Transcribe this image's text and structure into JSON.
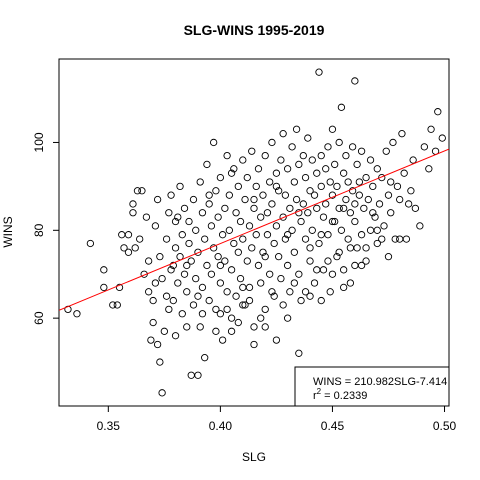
{
  "chart_data": {
    "type": "scatter",
    "title": "SLG-WINS 1995-2019",
    "xlabel": "SLG",
    "ylabel": "WINS",
    "xlim": [
      0.328,
      0.502
    ],
    "ylim": [
      40,
      119
    ],
    "xticks": [
      0.35,
      0.4,
      0.45,
      0.5
    ],
    "xtick_labels": [
      "0.35",
      "0.40",
      "0.45",
      "0.50"
    ],
    "yticks": [
      60,
      80,
      100
    ],
    "ytick_labels": [
      "60",
      "80",
      "100"
    ],
    "grid": false,
    "regression": {
      "slope": 210.982,
      "intercept": -7.414,
      "color": "#ff0000"
    },
    "legend": {
      "placement": "bottom-right",
      "equation": "WINS = 210.982SLG-7.414",
      "r2_prefix": "r",
      "r2_exponent": "2",
      "r2_value": " = 0.2339"
    },
    "series": [
      {
        "point_color": "#000000",
        "points": [
          [
            0.332,
            62
          ],
          [
            0.336,
            61
          ],
          [
            0.342,
            77
          ],
          [
            0.348,
            67
          ],
          [
            0.348,
            71
          ],
          [
            0.352,
            63
          ],
          [
            0.354,
            63
          ],
          [
            0.355,
            67
          ],
          [
            0.356,
            79
          ],
          [
            0.357,
            76
          ],
          [
            0.359,
            79
          ],
          [
            0.359,
            75
          ],
          [
            0.361,
            86
          ],
          [
            0.361,
            84
          ],
          [
            0.362,
            76
          ],
          [
            0.363,
            89
          ],
          [
            0.364,
            78
          ],
          [
            0.365,
            89
          ],
          [
            0.366,
            70
          ],
          [
            0.367,
            83
          ],
          [
            0.368,
            73
          ],
          [
            0.368,
            66
          ],
          [
            0.369,
            55
          ],
          [
            0.37,
            59
          ],
          [
            0.37,
            64
          ],
          [
            0.371,
            68
          ],
          [
            0.371,
            81
          ],
          [
            0.372,
            87
          ],
          [
            0.372,
            54
          ],
          [
            0.373,
            50
          ],
          [
            0.373,
            74
          ],
          [
            0.374,
            69
          ],
          [
            0.374,
            43
          ],
          [
            0.375,
            57
          ],
          [
            0.376,
            65
          ],
          [
            0.376,
            78
          ],
          [
            0.377,
            84
          ],
          [
            0.377,
            62
          ],
          [
            0.378,
            71
          ],
          [
            0.378,
            88
          ],
          [
            0.379,
            72
          ],
          [
            0.379,
            64
          ],
          [
            0.38,
            56
          ],
          [
            0.38,
            76
          ],
          [
            0.381,
            83
          ],
          [
            0.381,
            68
          ],
          [
            0.382,
            74
          ],
          [
            0.382,
            90
          ],
          [
            0.383,
            61
          ],
          [
            0.383,
            79
          ],
          [
            0.384,
            70
          ],
          [
            0.384,
            85
          ],
          [
            0.385,
            66
          ],
          [
            0.385,
            58
          ],
          [
            0.386,
            77
          ],
          [
            0.386,
            82
          ],
          [
            0.387,
            73
          ],
          [
            0.387,
            47
          ],
          [
            0.388,
            87
          ],
          [
            0.388,
            63
          ],
          [
            0.389,
            80
          ],
          [
            0.389,
            69
          ],
          [
            0.39,
            47
          ],
          [
            0.39,
            75
          ],
          [
            0.391,
            91
          ],
          [
            0.391,
            58
          ],
          [
            0.392,
            84
          ],
          [
            0.392,
            67
          ],
          [
            0.393,
            78
          ],
          [
            0.393,
            51
          ],
          [
            0.394,
            72
          ],
          [
            0.394,
            95
          ],
          [
            0.395,
            64
          ],
          [
            0.395,
            86
          ],
          [
            0.396,
            81
          ],
          [
            0.396,
            70
          ],
          [
            0.397,
            100
          ],
          [
            0.397,
            76
          ],
          [
            0.398,
            62
          ],
          [
            0.398,
            89
          ],
          [
            0.399,
            74
          ],
          [
            0.399,
            83
          ],
          [
            0.4,
            68
          ],
          [
            0.4,
            92
          ],
          [
            0.401,
            79
          ],
          [
            0.401,
            55
          ],
          [
            0.402,
            85
          ],
          [
            0.402,
            73
          ],
          [
            0.403,
            97
          ],
          [
            0.403,
            66
          ],
          [
            0.404,
            80
          ],
          [
            0.404,
            88
          ],
          [
            0.405,
            71
          ],
          [
            0.405,
            60
          ],
          [
            0.406,
            94
          ],
          [
            0.406,
            77
          ],
          [
            0.407,
            84
          ],
          [
            0.407,
            65
          ],
          [
            0.408,
            90
          ],
          [
            0.408,
            75
          ],
          [
            0.409,
            82
          ],
          [
            0.409,
            69
          ],
          [
            0.41,
            96
          ],
          [
            0.41,
            78
          ],
          [
            0.411,
            63
          ],
          [
            0.411,
            87
          ],
          [
            0.412,
            73
          ],
          [
            0.412,
            92
          ],
          [
            0.413,
            81
          ],
          [
            0.413,
            67
          ],
          [
            0.414,
            98
          ],
          [
            0.414,
            76
          ],
          [
            0.415,
            85
          ],
          [
            0.415,
            58
          ],
          [
            0.416,
            79
          ],
          [
            0.416,
            90
          ],
          [
            0.417,
            72
          ],
          [
            0.417,
            94
          ],
          [
            0.418,
            83
          ],
          [
            0.418,
            68
          ],
          [
            0.419,
            88
          ],
          [
            0.419,
            75
          ],
          [
            0.42,
            97
          ],
          [
            0.42,
            62
          ],
          [
            0.421,
            84
          ],
          [
            0.421,
            79
          ],
          [
            0.422,
            91
          ],
          [
            0.422,
            70
          ],
          [
            0.423,
            86
          ],
          [
            0.423,
            100
          ],
          [
            0.424,
            77
          ],
          [
            0.424,
            65
          ],
          [
            0.425,
            93
          ],
          [
            0.425,
            81
          ],
          [
            0.426,
            74
          ],
          [
            0.426,
            89
          ],
          [
            0.427,
            96
          ],
          [
            0.427,
            69
          ],
          [
            0.428,
            83
          ],
          [
            0.428,
            102
          ],
          [
            0.429,
            78
          ],
          [
            0.429,
            88
          ],
          [
            0.43,
            72
          ],
          [
            0.43,
            94
          ],
          [
            0.431,
            85
          ],
          [
            0.431,
            66
          ],
          [
            0.432,
            99
          ],
          [
            0.432,
            80
          ],
          [
            0.433,
            91
          ],
          [
            0.433,
            75
          ],
          [
            0.434,
            87
          ],
          [
            0.434,
            103
          ],
          [
            0.435,
            70
          ],
          [
            0.435,
            95
          ],
          [
            0.436,
            82
          ],
          [
            0.436,
            64
          ],
          [
            0.437,
            97
          ],
          [
            0.437,
            86
          ],
          [
            0.438,
            78
          ],
          [
            0.438,
            92
          ],
          [
            0.439,
            101
          ],
          [
            0.439,
            84
          ],
          [
            0.44,
            73
          ],
          [
            0.44,
            89
          ],
          [
            0.441,
            96
          ],
          [
            0.441,
            80
          ],
          [
            0.442,
            88
          ],
          [
            0.442,
            68
          ],
          [
            0.443,
            93
          ],
          [
            0.443,
            85
          ],
          [
            0.444,
            116
          ],
          [
            0.444,
            77
          ],
          [
            0.445,
            97
          ],
          [
            0.445,
            90
          ],
          [
            0.446,
            83
          ],
          [
            0.446,
            71
          ],
          [
            0.447,
            94
          ],
          [
            0.447,
            86
          ],
          [
            0.448,
            99
          ],
          [
            0.448,
            79
          ],
          [
            0.449,
            91
          ],
          [
            0.449,
            66
          ],
          [
            0.45,
            88
          ],
          [
            0.45,
            103
          ],
          [
            0.451,
            82
          ],
          [
            0.451,
            95
          ],
          [
            0.452,
            74
          ],
          [
            0.452,
            90
          ],
          [
            0.453,
            100
          ],
          [
            0.453,
            85
          ],
          [
            0.454,
            108
          ],
          [
            0.454,
            80
          ],
          [
            0.455,
            93
          ],
          [
            0.455,
            71
          ],
          [
            0.456,
            87
          ],
          [
            0.456,
            97
          ],
          [
            0.457,
            78
          ],
          [
            0.457,
            91
          ],
          [
            0.458,
            84
          ],
          [
            0.458,
            68
          ],
          [
            0.459,
            99
          ],
          [
            0.459,
            89
          ],
          [
            0.46,
            114
          ],
          [
            0.46,
            82
          ],
          [
            0.461,
            95
          ],
          [
            0.461,
            76
          ],
          [
            0.462,
            88
          ],
          [
            0.462,
            91
          ],
          [
            0.463,
            79
          ],
          [
            0.463,
            98
          ],
          [
            0.464,
            85
          ],
          [
            0.465,
            73
          ],
          [
            0.465,
            92
          ],
          [
            0.466,
            87
          ],
          [
            0.467,
            96
          ],
          [
            0.467,
            80
          ],
          [
            0.468,
            90
          ],
          [
            0.469,
            83
          ],
          [
            0.47,
            94
          ],
          [
            0.47,
            77
          ],
          [
            0.471,
            86
          ],
          [
            0.472,
            92
          ],
          [
            0.473,
            81
          ],
          [
            0.474,
            98
          ],
          [
            0.475,
            88
          ],
          [
            0.476,
            84
          ],
          [
            0.477,
            100
          ],
          [
            0.478,
            78
          ],
          [
            0.479,
            90
          ],
          [
            0.48,
            87
          ],
          [
            0.481,
            102
          ],
          [
            0.482,
            93
          ],
          [
            0.483,
            78
          ],
          [
            0.484,
            86
          ],
          [
            0.485,
            89
          ],
          [
            0.486,
            96
          ],
          [
            0.487,
            85
          ],
          [
            0.489,
            81
          ],
          [
            0.491,
            99
          ],
          [
            0.493,
            94
          ],
          [
            0.494,
            103
          ],
          [
            0.496,
            98
          ],
          [
            0.497,
            107
          ],
          [
            0.499,
            101
          ],
          [
            0.4,
            61
          ],
          [
            0.405,
            57
          ],
          [
            0.41,
            63
          ],
          [
            0.415,
            54
          ],
          [
            0.42,
            58
          ],
          [
            0.425,
            55
          ],
          [
            0.43,
            60
          ],
          [
            0.435,
            52
          ],
          [
            0.44,
            65
          ],
          [
            0.445,
            64
          ],
          [
            0.45,
            70
          ],
          [
            0.455,
            67
          ],
          [
            0.46,
            72
          ],
          [
            0.465,
            76
          ],
          [
            0.47,
            80
          ],
          [
            0.475,
            74
          ],
          [
            0.48,
            78
          ],
          [
            0.385,
            72
          ],
          [
            0.392,
            61
          ],
          [
            0.398,
            57
          ],
          [
            0.403,
            62
          ],
          [
            0.408,
            59
          ],
          [
            0.413,
            64
          ],
          [
            0.418,
            60
          ],
          [
            0.423,
            66
          ],
          [
            0.428,
            63
          ],
          [
            0.433,
            68
          ],
          [
            0.438,
            66
          ],
          [
            0.443,
            71
          ],
          [
            0.448,
            73
          ],
          [
            0.453,
            75
          ],
          [
            0.458,
            76
          ],
          [
            0.463,
            72
          ],
          [
            0.468,
            84
          ],
          [
            0.472,
            78
          ],
          [
            0.476,
            91
          ],
          [
            0.38,
            82
          ],
          [
            0.395,
            88
          ],
          [
            0.405,
            93
          ],
          [
            0.415,
            87
          ],
          [
            0.425,
            90
          ],
          [
            0.435,
            84
          ],
          [
            0.445,
            79
          ],
          [
            0.455,
            85
          ],
          [
            0.39,
            65
          ],
          [
            0.4,
            72
          ],
          [
            0.41,
            67
          ],
          [
            0.42,
            74
          ],
          [
            0.43,
            79
          ],
          [
            0.44,
            76
          ],
          [
            0.45,
            82
          ],
          [
            0.46,
            86
          ]
        ]
      }
    ]
  }
}
